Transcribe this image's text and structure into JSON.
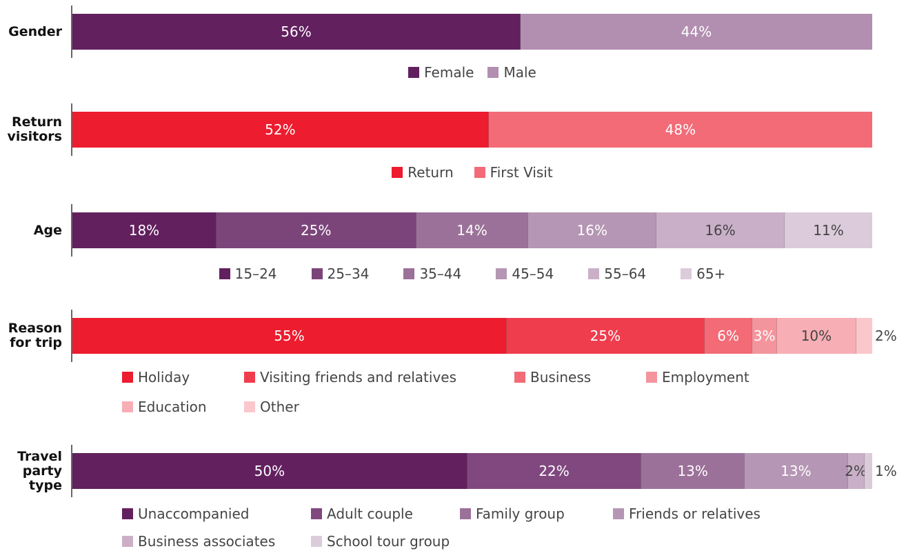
{
  "chart_data": [
    {
      "type": "bar",
      "title": "Gender",
      "series": [
        {
          "name": "Female",
          "color": "#62205f",
          "text_color": "#ffffff",
          "values": [
            56
          ],
          "value_labels": [
            "56%"
          ]
        },
        {
          "name": "Male",
          "color": "#b28fb0",
          "text_color": "#ffffff",
          "values": [
            44
          ],
          "value_labels": [
            "44%"
          ]
        }
      ]
    },
    {
      "type": "bar",
      "title": "Return\nvisitors",
      "series": [
        {
          "name": "Return",
          "color": "#ed1c2e",
          "text_color": "#ffffff",
          "values": [
            52
          ],
          "value_labels": [
            "52%"
          ]
        },
        {
          "name": "First Visit",
          "color": "#f26b77",
          "text_color": "#ffffff",
          "values": [
            48
          ],
          "value_labels": [
            "48%"
          ]
        }
      ]
    },
    {
      "type": "bar",
      "title": "Age",
      "series": [
        {
          "name": "15–24",
          "color": "#62205f",
          "text_color": "#ffffff",
          "values": [
            18
          ],
          "value_labels": [
            "18%"
          ]
        },
        {
          "name": "25–34",
          "color": "#7b457a",
          "text_color": "#ffffff",
          "values": [
            25
          ],
          "value_labels": [
            "25%"
          ]
        },
        {
          "name": "35–44",
          "color": "#9b7199",
          "text_color": "#ffffff",
          "values": [
            14
          ],
          "value_labels": [
            "14%"
          ]
        },
        {
          "name": "45–54",
          "color": "#b596b4",
          "text_color": "#ffffff",
          "values": [
            16
          ],
          "value_labels": [
            "16%"
          ]
        },
        {
          "name": "55–64",
          "color": "#c9b0c8",
          "text_color": "#444444",
          "values": [
            16
          ],
          "value_labels": [
            "16%"
          ]
        },
        {
          "name": "65+",
          "color": "#dccbdb",
          "text_color": "#444444",
          "values": [
            11
          ],
          "value_labels": [
            "11%"
          ]
        }
      ]
    },
    {
      "type": "bar",
      "title": "Reason\nfor trip",
      "series": [
        {
          "name": "Holiday",
          "color": "#ed1c2e",
          "text_color": "#ffffff",
          "values": [
            55
          ],
          "value_labels": [
            "55%"
          ]
        },
        {
          "name": "Visiting friends and relatives",
          "color": "#ef3d4d",
          "text_color": "#ffffff",
          "values": [
            25
          ],
          "value_labels": [
            "25%"
          ]
        },
        {
          "name": "Business",
          "color": "#f26b77",
          "text_color": "#ffffff",
          "values": [
            6
          ],
          "value_labels": [
            "6%"
          ]
        },
        {
          "name": "Employment",
          "color": "#f4949c",
          "text_color": "#ffffff",
          "values": [
            3
          ],
          "value_labels": [
            "3%"
          ]
        },
        {
          "name": "Education",
          "color": "#f7aeb4",
          "text_color": "#444444",
          "values": [
            10
          ],
          "value_labels": [
            "10%"
          ]
        },
        {
          "name": "Other",
          "color": "#fac8cc",
          "text_color": "#444444",
          "values": [
            2
          ],
          "value_labels": [
            "2%"
          ]
        }
      ]
    },
    {
      "type": "bar",
      "title": "Travel\nparty\ntype",
      "series": [
        {
          "name": "Unaccompanied",
          "color": "#62205f",
          "text_color": "#ffffff",
          "values": [
            50
          ],
          "value_labels": [
            "50%"
          ]
        },
        {
          "name": "Adult couple",
          "color": "#80487f",
          "text_color": "#ffffff",
          "values": [
            22
          ],
          "value_labels": [
            "22%"
          ]
        },
        {
          "name": "Family group",
          "color": "#9b7199",
          "text_color": "#ffffff",
          "values": [
            13
          ],
          "value_labels": [
            "13%"
          ]
        },
        {
          "name": "Friends or relatives",
          "color": "#b596b4",
          "text_color": "#ffffff",
          "values": [
            13
          ],
          "value_labels": [
            "13%"
          ]
        },
        {
          "name": "Business associates",
          "color": "#c9b0c8",
          "text_color": "#444444",
          "values": [
            2
          ],
          "value_labels": [
            "2%"
          ]
        },
        {
          "name": "School tour group",
          "color": "#dccbdb",
          "text_color": "#444444",
          "values": [
            1
          ],
          "value_labels": [
            "1%"
          ]
        }
      ]
    }
  ]
}
